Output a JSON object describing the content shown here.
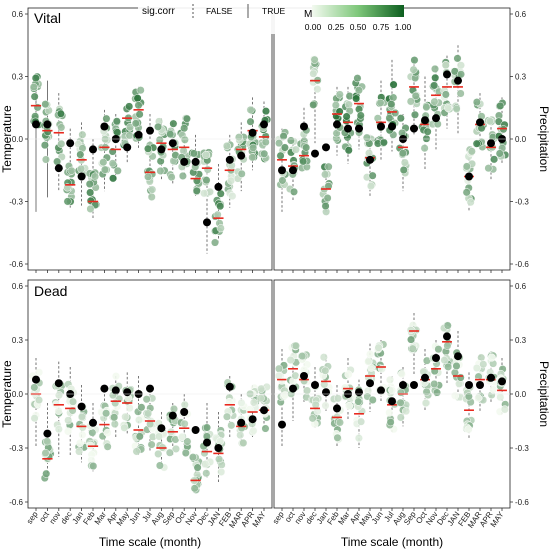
{
  "chart_data": {
    "type": "scatter",
    "legend": {
      "sig_title": "sig.corr",
      "sig_false": "FALSE",
      "sig_true": "TRUE",
      "m_title": "M",
      "m_ticks": [
        "0.00",
        "0.25",
        "0.50",
        "0.75",
        "1.00"
      ],
      "m_low_color": "#f3faf0",
      "m_high_color": "#0d5e1f"
    },
    "colors": {
      "median_line": "#e8291f",
      "dot_black": "#000000",
      "whisker": "#555555"
    },
    "y_tick_labels": [
      "0.6",
      "0.3",
      "0.0",
      "-0.3",
      "-0.6"
    ],
    "y_ticks": [
      0.6,
      0.3,
      0.0,
      -0.3,
      -0.6
    ],
    "ylim": [
      -0.6,
      0.6
    ],
    "left_categories": [
      "sep",
      "oct",
      "nov",
      "dec",
      "Jan",
      "Feb",
      "Mar",
      "Apr",
      "May",
      "Jun",
      "Jul",
      "Aug",
      "Sep",
      "Oct",
      "Nov",
      "Dec",
      "JAN",
      "FEB",
      "MAR",
      "APR",
      "MAY"
    ],
    "right_categories": [
      "sep",
      "oct",
      "nov",
      "dec",
      "Jan",
      "Feb",
      "Mar",
      "Apr",
      "May",
      "Jun",
      "Jul",
      "Aug",
      "Sep",
      "Oct",
      "Nov",
      "Dec",
      "JAN",
      "FEB",
      "MAR",
      "APR",
      "MAY"
    ],
    "xlabel": "Time scale (month)",
    "ylabel_left": "Temperature",
    "ylabel_right": "Precipitation",
    "panels": [
      {
        "row_title": "Vital",
        "left": {
          "medians": [
            0.16,
            0.04,
            0.03,
            -0.22,
            -0.1,
            -0.3,
            -0.04,
            -0.05,
            0.1,
            0.14,
            -0.16,
            -0.02,
            -0.05,
            -0.04,
            -0.19,
            -0.14,
            -0.38,
            -0.15,
            -0.05,
            0.04,
            0.01
          ],
          "black": [
            0.07,
            0.07,
            -0.14,
            -0.02,
            -0.18,
            -0.05,
            0.06,
            0.0,
            -0.04,
            0.02,
            0.04,
            -0.05,
            -0.02,
            -0.11,
            -0.11,
            -0.4,
            -0.23,
            -0.1,
            -0.08,
            0.03,
            0.07
          ],
          "lo": [
            -0.35,
            -0.28,
            -0.25,
            -0.33,
            -0.32,
            -0.38,
            -0.25,
            -0.2,
            -0.12,
            -0.05,
            -0.28,
            -0.2,
            -0.22,
            -0.18,
            -0.28,
            -0.55,
            -0.5,
            -0.33,
            -0.25,
            -0.15,
            -0.1
          ],
          "hi": [
            0.3,
            0.28,
            0.22,
            0.05,
            0.08,
            0.0,
            0.14,
            0.12,
            0.16,
            0.25,
            0.12,
            0.1,
            0.08,
            0.1,
            0.02,
            -0.05,
            -0.12,
            0.02,
            0.08,
            0.2,
            0.18
          ],
          "m": [
            0.6,
            0.5,
            0.5,
            0.45,
            0.35,
            0.5,
            0.4,
            0.55,
            0.6,
            0.6,
            0.45,
            0.5,
            0.5,
            0.45,
            0.4,
            0.35,
            0.5,
            0.4,
            0.45,
            0.5,
            0.55
          ]
        },
        "right": {
          "medians": [
            -0.1,
            -0.13,
            -0.08,
            0.28,
            -0.24,
            0.12,
            0.08,
            0.17,
            -0.09,
            0.08,
            0.13,
            -0.04,
            0.25,
            0.07,
            0.21,
            0.25,
            0.25,
            -0.18,
            0.07,
            -0.04,
            0.05
          ],
          "black": [
            -0.15,
            -0.15,
            0.06,
            -0.07,
            -0.04,
            0.07,
            0.05,
            0.05,
            -0.1,
            0.06,
            0.06,
            0.0,
            0.05,
            0.09,
            0.1,
            0.31,
            0.28,
            -0.18,
            0.08,
            -0.02,
            0.0
          ],
          "lo": [
            -0.35,
            -0.3,
            -0.15,
            -0.02,
            -0.35,
            -0.08,
            -0.12,
            -0.05,
            -0.28,
            -0.1,
            -0.06,
            -0.25,
            0.02,
            -0.15,
            -0.05,
            0.05,
            0.02,
            -0.35,
            -0.05,
            -0.2,
            -0.12
          ],
          "hi": [
            0.05,
            0.0,
            0.15,
            0.4,
            -0.12,
            0.25,
            0.25,
            0.3,
            0.02,
            0.28,
            0.38,
            0.12,
            0.38,
            0.3,
            0.35,
            0.4,
            0.45,
            -0.05,
            0.22,
            0.1,
            0.2
          ],
          "m": [
            0.4,
            0.45,
            0.5,
            0.4,
            0.5,
            0.6,
            0.55,
            0.6,
            0.45,
            0.55,
            0.6,
            0.5,
            0.45,
            0.5,
            0.5,
            0.35,
            0.4,
            0.35,
            0.5,
            0.5,
            0.55
          ]
        }
      },
      {
        "row_title": "Dead",
        "left": {
          "medians": [
            0.0,
            -0.36,
            -0.06,
            -0.08,
            -0.18,
            -0.29,
            -0.17,
            -0.04,
            -0.05,
            -0.2,
            -0.15,
            -0.3,
            -0.21,
            -0.19,
            -0.48,
            -0.32,
            -0.33,
            -0.06,
            -0.18,
            -0.1,
            -0.09
          ],
          "black": [
            0.08,
            -0.22,
            0.06,
            0.0,
            -0.07,
            -0.16,
            0.03,
            0.02,
            0.01,
            0.0,
            0.03,
            -0.19,
            -0.12,
            -0.1,
            -0.2,
            -0.27,
            -0.3,
            0.04,
            -0.16,
            -0.14,
            -0.09
          ],
          "lo": [
            -0.3,
            -0.48,
            -0.35,
            -0.35,
            -0.38,
            -0.43,
            -0.3,
            -0.25,
            -0.22,
            -0.35,
            -0.32,
            -0.42,
            -0.35,
            -0.35,
            -0.55,
            -0.47,
            -0.5,
            -0.25,
            -0.3,
            -0.25,
            -0.2
          ],
          "hi": [
            0.2,
            -0.05,
            0.18,
            0.15,
            0.05,
            -0.05,
            0.05,
            0.1,
            0.12,
            0.1,
            0.05,
            -0.1,
            -0.05,
            0.0,
            -0.35,
            -0.05,
            -0.1,
            0.1,
            0.0,
            0.05,
            0.05
          ],
          "m": [
            0.15,
            0.35,
            0.2,
            0.2,
            0.2,
            0.25,
            0.2,
            0.2,
            0.25,
            0.25,
            0.2,
            0.3,
            0.25,
            0.25,
            0.4,
            0.25,
            0.3,
            0.2,
            0.2,
            0.2,
            0.2
          ]
        },
        "right": {
          "medians": [
            0.08,
            0.14,
            0.08,
            -0.08,
            0.07,
            -0.13,
            0.03,
            -0.11,
            0.1,
            0.15,
            -0.06,
            0.0,
            0.35,
            0.08,
            0.14,
            0.29,
            0.1,
            -0.09,
            0.08,
            0.08,
            0.02
          ],
          "black": [
            -0.17,
            0.03,
            0.1,
            0.05,
            0.01,
            -0.08,
            0.0,
            0.01,
            0.06,
            0.02,
            -0.04,
            0.05,
            0.05,
            0.09,
            0.2,
            0.32,
            0.21,
            0.05,
            0.05,
            0.09,
            0.07
          ],
          "lo": [
            -0.3,
            -0.15,
            -0.05,
            -0.2,
            -0.1,
            -0.3,
            -0.15,
            -0.3,
            -0.1,
            -0.05,
            -0.22,
            -0.18,
            0.1,
            -0.1,
            -0.02,
            0.05,
            -0.05,
            -0.25,
            -0.1,
            -0.05,
            -0.12
          ],
          "hi": [
            0.25,
            0.28,
            0.22,
            0.15,
            0.22,
            0.05,
            0.2,
            0.08,
            0.28,
            0.3,
            0.1,
            0.15,
            0.45,
            0.25,
            0.3,
            0.4,
            0.35,
            0.12,
            0.22,
            0.22,
            0.2
          ],
          "m": [
            0.2,
            0.2,
            0.2,
            0.15,
            0.2,
            0.2,
            0.2,
            0.15,
            0.25,
            0.25,
            0.2,
            0.2,
            0.3,
            0.2,
            0.25,
            0.3,
            0.25,
            0.2,
            0.2,
            0.2,
            0.2
          ]
        }
      }
    ]
  }
}
